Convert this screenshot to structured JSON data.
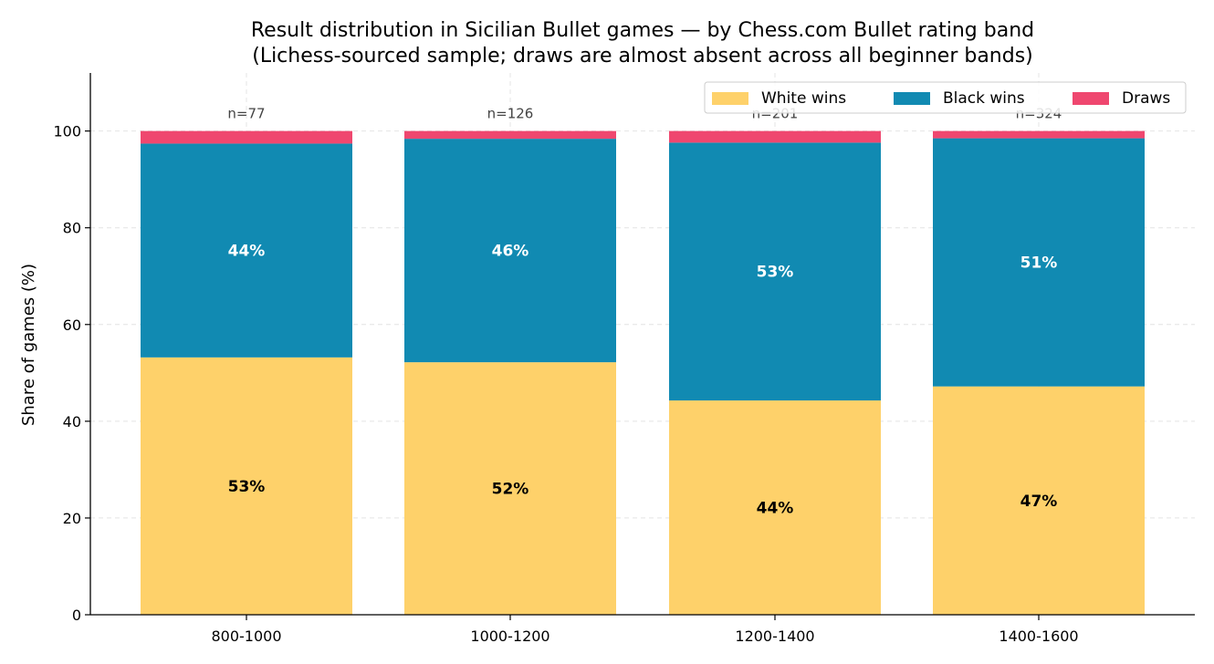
{
  "chart_data": {
    "type": "bar",
    "stacked": true,
    "title": "Result distribution in Sicilian Bullet games — by Chess.com Bullet rating band",
    "subtitle": "(Lichess-sourced sample; draws are almost absent across all beginner bands)",
    "xlabel": "",
    "ylabel": "Share of games (%)",
    "ylim": [
      0,
      112
    ],
    "yticks": [
      "0",
      "20",
      "40",
      "60",
      "80",
      "100"
    ],
    "grid": true,
    "legend_position": "top-right",
    "categories": [
      "800-1000",
      "1000-1200",
      "1200-1400",
      "1400-1600"
    ],
    "sample_sizes": [
      "n=77",
      "n=126",
      "n=201",
      "n=324"
    ],
    "series": [
      {
        "name": "White wins",
        "color": "#fed16a",
        "values": [
          53.2,
          52.2,
          44.3,
          47.2
        ],
        "labels": [
          "53%",
          "52%",
          "44%",
          "47%"
        ],
        "label_color": "#000000"
      },
      {
        "name": "Black wins",
        "color": "#118ab2",
        "values": [
          44.2,
          46.2,
          53.3,
          51.3
        ],
        "labels": [
          "44%",
          "46%",
          "53%",
          "51%"
        ],
        "label_color": "#ffffff"
      },
      {
        "name": "Draws",
        "color": "#ef476f",
        "values": [
          2.6,
          1.6,
          2.4,
          1.5
        ],
        "labels": [
          "",
          "",
          "",
          ""
        ],
        "label_color": "#ffffff"
      }
    ]
  }
}
